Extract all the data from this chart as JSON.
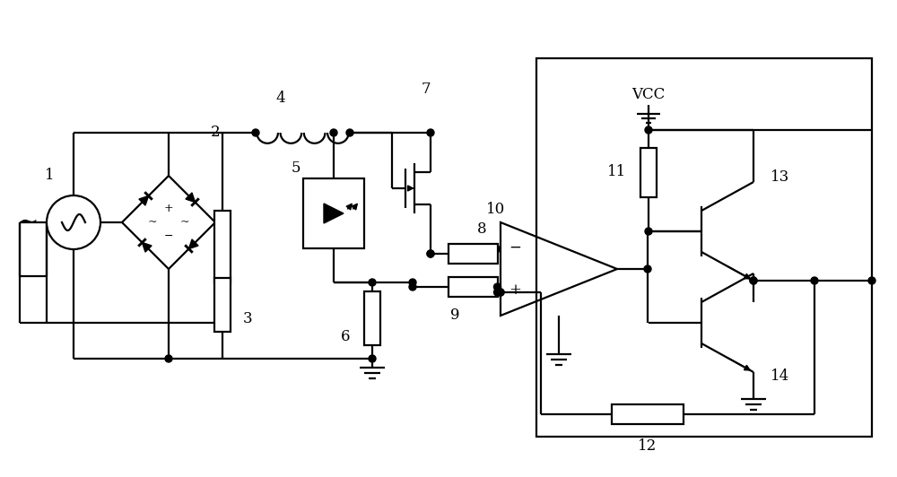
{
  "bg": "#ffffff",
  "lc": "#000000",
  "lw": 1.6,
  "fw": 10.0,
  "fh": 5.32,
  "dpi": 100
}
